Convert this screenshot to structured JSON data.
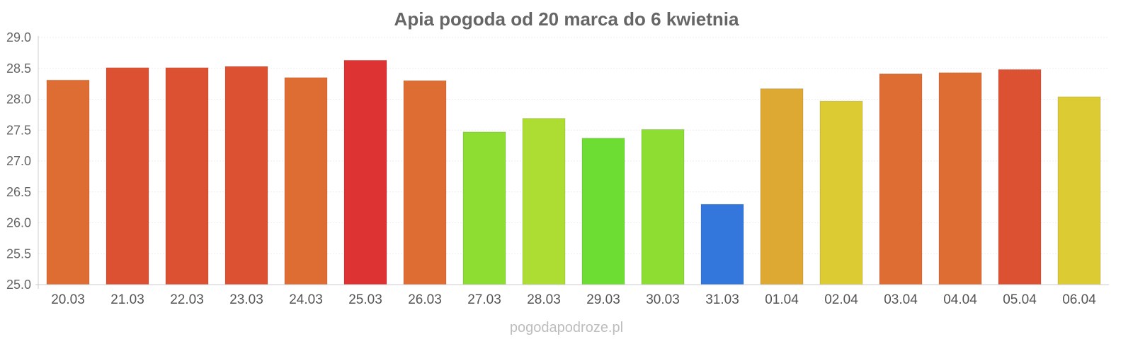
{
  "chart_data": {
    "type": "bar",
    "title": "Apia pogoda od 20 marca do 6 kwietnia",
    "xlabel": "",
    "ylabel": "",
    "categories": [
      "20.03",
      "21.03",
      "22.03",
      "23.03",
      "24.03",
      "25.03",
      "26.03",
      "27.03",
      "28.03",
      "29.03",
      "30.03",
      "31.03",
      "01.04",
      "02.04",
      "03.04",
      "04.04",
      "05.04",
      "06.04"
    ],
    "values": [
      28.31,
      28.51,
      28.51,
      28.53,
      28.35,
      28.63,
      28.3,
      27.47,
      27.69,
      27.37,
      27.51,
      26.3,
      28.17,
      27.97,
      28.41,
      28.43,
      28.48,
      28.04
    ],
    "colors": [
      "#dd6d33",
      "#dd5133",
      "#dd5133",
      "#dd5133",
      "#dd6d33",
      "#dd3333",
      "#dd6d33",
      "#8ddd33",
      "#addd33",
      "#6ddd33",
      "#8ddd33",
      "#3377dd",
      "#dda933",
      "#ddcb33",
      "#dd6d33",
      "#dd6d33",
      "#dd5133",
      "#ddcb33"
    ],
    "yticks": [
      "29.0",
      "28.5",
      "28.0",
      "27.5",
      "27.0",
      "26.5",
      "26.0",
      "25.5",
      "25.0"
    ],
    "ylim": [
      25.0,
      29.0
    ],
    "grid": true,
    "legend": "none"
  },
  "watermark": "pogodapodroze.pl"
}
